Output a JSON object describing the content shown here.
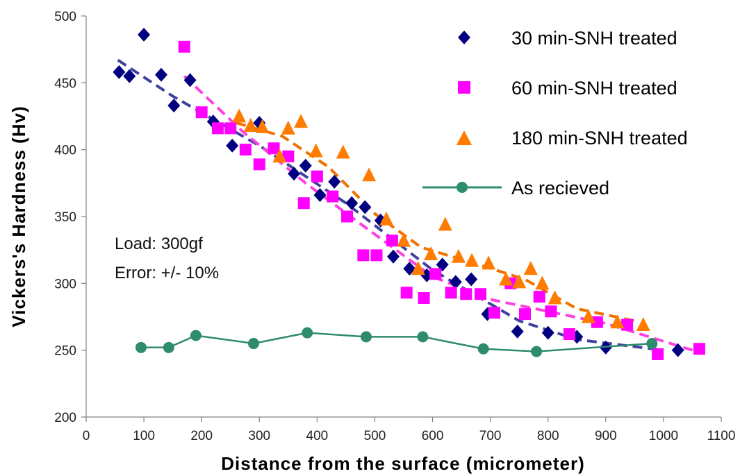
{
  "chart_data": {
    "type": "scatter",
    "xlabel": "Distance from the surface (micrometer)",
    "ylabel": "Vickers's Hardness (Hv)",
    "xlim": [
      0,
      1100
    ],
    "ylim": [
      200,
      500
    ],
    "xticks": [
      0,
      100,
      200,
      300,
      400,
      500,
      600,
      700,
      800,
      900,
      1000,
      1100
    ],
    "yticks": [
      200,
      250,
      300,
      350,
      400,
      450,
      500
    ],
    "grid": false,
    "legend_position": "top-right",
    "annotations": [
      "Load: 300gf",
      "Error: +/- 10%"
    ],
    "series": [
      {
        "name": "30 min-SNH treated",
        "marker": "diamond",
        "color": "#000080",
        "trend_color": "#4040a0",
        "trend": [
          [
            55,
            467
          ],
          [
            150,
            440
          ],
          [
            300,
            403
          ],
          [
            450,
            360
          ],
          [
            600,
            310
          ],
          [
            750,
            272
          ],
          [
            850,
            258
          ],
          [
            1000,
            250
          ]
        ],
        "points": [
          [
            57,
            458
          ],
          [
            75,
            455
          ],
          [
            100,
            486
          ],
          [
            130,
            456
          ],
          [
            152,
            433
          ],
          [
            180,
            452
          ],
          [
            220,
            421
          ],
          [
            253,
            403
          ],
          [
            300,
            420
          ],
          [
            360,
            382
          ],
          [
            380,
            388
          ],
          [
            405,
            366
          ],
          [
            430,
            376
          ],
          [
            460,
            360
          ],
          [
            483,
            357
          ],
          [
            510,
            347
          ],
          [
            532,
            320
          ],
          [
            560,
            311
          ],
          [
            590,
            306
          ],
          [
            617,
            314
          ],
          [
            640,
            301
          ],
          [
            667,
            303
          ],
          [
            695,
            277
          ],
          [
            747,
            264
          ],
          [
            800,
            263
          ],
          [
            850,
            260
          ],
          [
            900,
            252
          ],
          [
            1025,
            250
          ]
        ]
      },
      {
        "name": "60 min-SNH treated",
        "marker": "square",
        "color": "#ff00ff",
        "trend_color": "#ff40e0",
        "trend": [
          [
            170,
            455
          ],
          [
            270,
            414
          ],
          [
            380,
            375
          ],
          [
            480,
            343
          ],
          [
            600,
            305
          ],
          [
            700,
            288
          ],
          [
            800,
            279
          ],
          [
            900,
            270
          ],
          [
            1050,
            250
          ]
        ],
        "points": [
          [
            170,
            477
          ],
          [
            200,
            428
          ],
          [
            228,
            416
          ],
          [
            250,
            416
          ],
          [
            276,
            400
          ],
          [
            300,
            389
          ],
          [
            325,
            401
          ],
          [
            350,
            395
          ],
          [
            377,
            360
          ],
          [
            400,
            380
          ],
          [
            427,
            365
          ],
          [
            452,
            350
          ],
          [
            480,
            321
          ],
          [
            503,
            321
          ],
          [
            530,
            332
          ],
          [
            555,
            293
          ],
          [
            585,
            289
          ],
          [
            605,
            307
          ],
          [
            632,
            293
          ],
          [
            658,
            292
          ],
          [
            683,
            292
          ],
          [
            707,
            278
          ],
          [
            735,
            300
          ],
          [
            760,
            277
          ],
          [
            785,
            290
          ],
          [
            805,
            279
          ],
          [
            837,
            262
          ],
          [
            885,
            271
          ],
          [
            937,
            269
          ],
          [
            990,
            247
          ],
          [
            1062,
            251
          ]
        ]
      },
      {
        "name": "180 min-SNH treated",
        "marker": "triangle",
        "color": "#ff7c00",
        "trend_color": "#f07000",
        "trend": [
          [
            260,
            420
          ],
          [
            340,
            410
          ],
          [
            420,
            387
          ],
          [
            500,
            352
          ],
          [
            580,
            327
          ],
          [
            680,
            314
          ],
          [
            760,
            303
          ],
          [
            850,
            281
          ],
          [
            950,
            272
          ]
        ],
        "points": [
          [
            265,
            425
          ],
          [
            285,
            418
          ],
          [
            305,
            417
          ],
          [
            335,
            395
          ],
          [
            350,
            416
          ],
          [
            372,
            421
          ],
          [
            398,
            399
          ],
          [
            445,
            398
          ],
          [
            490,
            381
          ],
          [
            520,
            348
          ],
          [
            550,
            332
          ],
          [
            575,
            311
          ],
          [
            597,
            322
          ],
          [
            622,
            344
          ],
          [
            645,
            320
          ],
          [
            668,
            317
          ],
          [
            697,
            315
          ],
          [
            727,
            303
          ],
          [
            750,
            301
          ],
          [
            770,
            311
          ],
          [
            790,
            300
          ],
          [
            812,
            289
          ],
          [
            870,
            275
          ],
          [
            920,
            271
          ],
          [
            965,
            269
          ]
        ]
      },
      {
        "name": "As recieved",
        "marker": "circle-line",
        "color": "#2e8b6e",
        "points": [
          [
            95,
            252
          ],
          [
            143,
            252
          ],
          [
            190,
            261
          ],
          [
            290,
            255
          ],
          [
            383,
            263
          ],
          [
            485,
            260
          ],
          [
            583,
            260
          ],
          [
            688,
            251
          ],
          [
            780,
            249
          ],
          [
            980,
            255
          ]
        ]
      }
    ]
  }
}
